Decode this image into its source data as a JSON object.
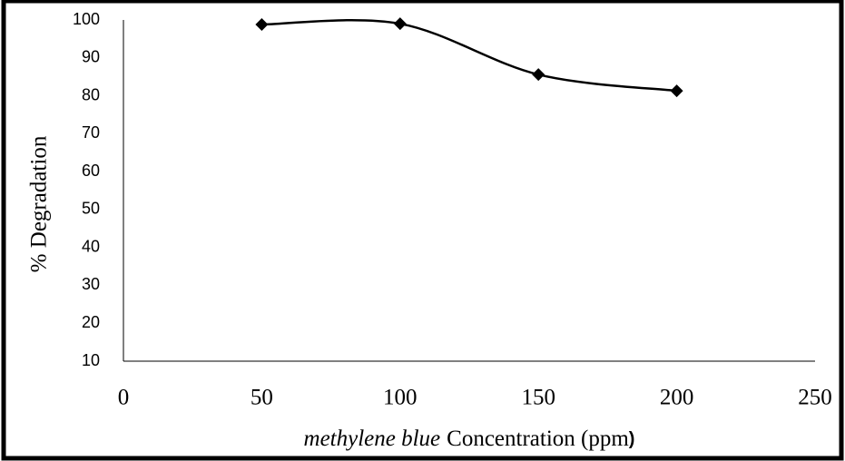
{
  "chart_data": {
    "type": "scatter",
    "line": "smooth",
    "marker": "diamond",
    "x_label_parts": [
      "methylene blue",
      "Concentration (ppm",
      ")"
    ],
    "y_label": "% Degradation",
    "series": [
      {
        "color": "#000000",
        "x": [
          50,
          100,
          150,
          200
        ],
        "values": [
          98.8,
          99,
          85.6,
          81.3
        ]
      }
    ],
    "xlim": [
      0,
      250
    ],
    "xticks": [
      0,
      50,
      100,
      150,
      200,
      250
    ],
    "ylim": [
      10,
      100
    ],
    "yticks": [
      10,
      20,
      30,
      40,
      50,
      60,
      70,
      80,
      90,
      100
    ],
    "grid": false
  }
}
